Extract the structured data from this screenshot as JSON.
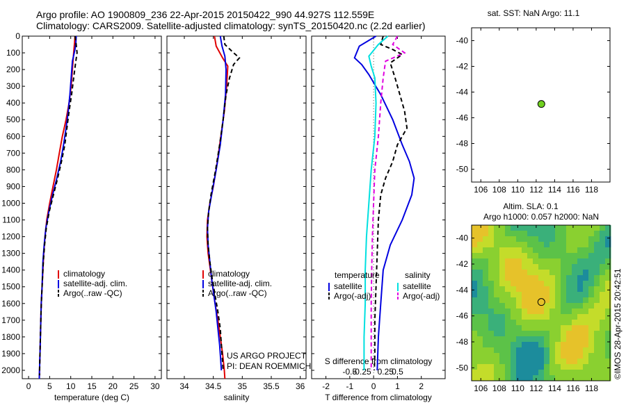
{
  "header": {
    "line1": "Argo profile: AO 1900809_236 22-Apr-2015 20150422_990 44.927S 112.559E",
    "line2": "Climatology: CARS2009. Satellite-adjusted climatology: synTS_20150420.nc (2.2d earlier)"
  },
  "shared": {
    "depth_ticks": [
      "0",
      "100",
      "200",
      "300",
      "400",
      "500",
      "600",
      "700",
      "800",
      "900",
      "1000",
      "1100",
      "1200",
      "1300",
      "1400",
      "1500",
      "1600",
      "1700",
      "1800",
      "1900",
      "2000"
    ],
    "ylim": [
      0,
      2050
    ]
  },
  "credit": {
    "line1": "US ARGO PROJECT",
    "line2": "PI: DEAN ROEMMICH"
  },
  "imos_stamp": "©IMOS 28-Apr-2015 20:42:51",
  "colors": {
    "climatology": "#e00000",
    "satellite": "#0000e0",
    "argo": "#000000",
    "satellite_s": "#00e0e0",
    "argo_s": "#e000e0",
    "marker": "#70d020"
  },
  "chart_data": [
    {
      "type": "line",
      "id": "temperature",
      "xlabel": "temperature (deg C)",
      "xlim": [
        -1.5,
        31.5
      ],
      "xticks": [
        0,
        5,
        10,
        15,
        20,
        25,
        30
      ],
      "xtick_labels": [
        "0",
        "5",
        "10",
        "15",
        "20",
        "25",
        "30"
      ],
      "legend": [
        "climatology",
        "satellite-adj. clim.",
        "Argo(..raw -QC)"
      ],
      "series": [
        {
          "name": "climatology",
          "color": "#e00000",
          "dash": "",
          "points": [
            [
              11.0,
              0
            ],
            [
              10.9,
              40
            ],
            [
              10.7,
              100
            ],
            [
              10.4,
              200
            ],
            [
              10.1,
              300
            ],
            [
              9.6,
              400
            ],
            [
              8.9,
              500
            ],
            [
              8.0,
              600
            ],
            [
              7.3,
              700
            ],
            [
              6.6,
              800
            ],
            [
              5.8,
              900
            ],
            [
              5.0,
              1000
            ],
            [
              4.3,
              1100
            ],
            [
              3.9,
              1200
            ],
            [
              3.6,
              1300
            ],
            [
              3.4,
              1400
            ],
            [
              3.2,
              1500
            ],
            [
              3.0,
              1600
            ],
            [
              2.9,
              1700
            ],
            [
              2.8,
              1800
            ],
            [
              2.7,
              1900
            ],
            [
              2.6,
              2000
            ],
            [
              2.55,
              2050
            ]
          ]
        },
        {
          "name": "satellite-adj. clim.",
          "color": "#0000e0",
          "dash": "",
          "points": [
            [
              11.3,
              0
            ],
            [
              11.2,
              40
            ],
            [
              11.0,
              80
            ],
            [
              10.4,
              150
            ],
            [
              10.1,
              250
            ],
            [
              9.8,
              350
            ],
            [
              9.4,
              450
            ],
            [
              8.9,
              550
            ],
            [
              8.3,
              650
            ],
            [
              7.6,
              750
            ],
            [
              6.7,
              850
            ],
            [
              5.7,
              950
            ],
            [
              4.8,
              1050
            ],
            [
              4.1,
              1150
            ],
            [
              3.7,
              1250
            ],
            [
              3.4,
              1350
            ],
            [
              3.2,
              1500
            ],
            [
              3.0,
              1600
            ],
            [
              2.9,
              1700
            ],
            [
              2.8,
              1800
            ],
            [
              2.7,
              1900
            ],
            [
              2.6,
              2000
            ],
            [
              2.55,
              2050
            ]
          ]
        },
        {
          "name": "Argo(..raw -QC)",
          "color": "#000000",
          "dash": "6,4",
          "points": [
            [
              11.0,
              0
            ],
            [
              11.2,
              30
            ],
            [
              11.5,
              100
            ],
            [
              11.2,
              150
            ],
            [
              10.7,
              250
            ],
            [
              10.2,
              350
            ],
            [
              9.6,
              450
            ],
            [
              9.1,
              550
            ],
            [
              8.6,
              650
            ],
            [
              7.8,
              750
            ],
            [
              6.9,
              850
            ],
            [
              5.9,
              950
            ],
            [
              4.9,
              1050
            ],
            [
              4.2,
              1150
            ],
            [
              3.8,
              1250
            ],
            [
              3.5,
              1350
            ],
            [
              3.3,
              1450
            ],
            [
              3.1,
              1550
            ],
            [
              2.95,
              1650
            ],
            [
              2.85,
              1750
            ],
            [
              2.75,
              1850
            ],
            [
              2.65,
              1950
            ],
            [
              2.6,
              2030
            ]
          ]
        }
      ]
    },
    {
      "type": "line",
      "id": "salinity",
      "xlabel": "salinity",
      "xlim": [
        33.7,
        36.1
      ],
      "xticks": [
        34,
        34.5,
        35,
        35.5,
        36
      ],
      "xtick_labels": [
        "34",
        "34.5",
        "35",
        "35.5",
        "36"
      ],
      "legend": [
        "climatology",
        "satellite-adj. clim.",
        "Argo(..raw -QC)"
      ],
      "series": [
        {
          "name": "climatology",
          "color": "#e00000",
          "dash": "",
          "points": [
            [
              34.52,
              0
            ],
            [
              34.55,
              60
            ],
            [
              34.66,
              130
            ],
            [
              34.75,
              180
            ],
            [
              34.73,
              300
            ],
            [
              34.69,
              450
            ],
            [
              34.63,
              600
            ],
            [
              34.57,
              750
            ],
            [
              34.5,
              900
            ],
            [
              34.44,
              1000
            ],
            [
              34.4,
              1100
            ],
            [
              34.39,
              1200
            ],
            [
              34.41,
              1300
            ],
            [
              34.45,
              1400
            ],
            [
              34.49,
              1500
            ],
            [
              34.53,
              1600
            ],
            [
              34.58,
              1700
            ],
            [
              34.62,
              1800
            ],
            [
              34.66,
              1900
            ],
            [
              34.69,
              2000
            ],
            [
              34.7,
              2050
            ]
          ]
        },
        {
          "name": "satellite-adj. clim.",
          "color": "#0000e0",
          "dash": "",
          "points": [
            [
              34.62,
              0
            ],
            [
              34.65,
              60
            ],
            [
              34.7,
              120
            ],
            [
              34.72,
              200
            ],
            [
              34.71,
              350
            ],
            [
              34.67,
              500
            ],
            [
              34.62,
              650
            ],
            [
              34.55,
              800
            ],
            [
              34.47,
              950
            ],
            [
              34.42,
              1050
            ],
            [
              34.4,
              1150
            ],
            [
              34.41,
              1250
            ],
            [
              34.44,
              1350
            ],
            [
              34.47,
              1450
            ],
            [
              34.51,
              1550
            ],
            [
              34.55,
              1650
            ],
            [
              34.58,
              1750
            ],
            [
              34.61,
              1850
            ],
            [
              34.63,
              1950
            ],
            [
              34.64,
              2000
            ]
          ]
        },
        {
          "name": "Argo(..raw -QC)",
          "color": "#000000",
          "dash": "6,4",
          "points": [
            [
              34.68,
              0
            ],
            [
              34.7,
              50
            ],
            [
              34.85,
              100
            ],
            [
              34.95,
              130
            ],
            [
              34.85,
              170
            ],
            [
              34.78,
              250
            ],
            [
              34.72,
              350
            ],
            [
              34.67,
              500
            ],
            [
              34.61,
              650
            ],
            [
              34.54,
              800
            ],
            [
              34.46,
              950
            ],
            [
              34.42,
              1050
            ],
            [
              34.4,
              1150
            ],
            [
              34.41,
              1250
            ],
            [
              34.44,
              1350
            ],
            [
              34.48,
              1450
            ],
            [
              34.53,
              1550
            ],
            [
              34.58,
              1650
            ],
            [
              34.62,
              1750
            ],
            [
              34.64,
              1850
            ],
            [
              34.66,
              1950
            ],
            [
              34.67,
              2000
            ]
          ]
        }
      ]
    },
    {
      "type": "line",
      "id": "differences",
      "xlabel": "T difference from climatology",
      "xlabel_top": "S difference from climatology",
      "xlim": [
        -2.6,
        3.0
      ],
      "xticks": [
        -2,
        -1,
        0,
        1,
        2
      ],
      "xtick_labels": [
        "-2",
        "-1",
        "0",
        "1",
        "2"
      ],
      "s_ticks_at": [
        -1,
        -0.5,
        0.5,
        1
      ],
      "s_tick_labels": [
        "-0.5",
        "-0.25",
        "0.25",
        "0.5"
      ],
      "legend_headers": [
        "temperature",
        "salinity"
      ],
      "legend": [
        "satellite",
        "Argo(-adj)",
        "satellite",
        "Argo(-adj)"
      ],
      "series": [
        {
          "name": "satellite",
          "color": "#0000e0",
          "dash": "",
          "points": [
            [
              0.1,
              0
            ],
            [
              -0.6,
              60
            ],
            [
              -0.8,
              130
            ],
            [
              -0.5,
              170
            ],
            [
              -0.2,
              230
            ],
            [
              0.3,
              350
            ],
            [
              0.8,
              500
            ],
            [
              1.2,
              650
            ],
            [
              1.5,
              750
            ],
            [
              1.7,
              850
            ],
            [
              1.6,
              950
            ],
            [
              1.2,
              1100
            ],
            [
              0.7,
              1250
            ],
            [
              0.4,
              1400
            ],
            [
              0.3,
              1600
            ],
            [
              0.2,
              1800
            ],
            [
              0.15,
              2000
            ]
          ]
        },
        {
          "name": "Argo(-adj)",
          "color": "#000000",
          "dash": "6,4",
          "points": [
            [
              0.4,
              0
            ],
            [
              0.3,
              50
            ],
            [
              0.8,
              80
            ],
            [
              1.2,
              110
            ],
            [
              0.7,
              160
            ],
            [
              0.9,
              250
            ],
            [
              1.1,
              350
            ],
            [
              1.3,
              450
            ],
            [
              1.4,
              550
            ],
            [
              1.0,
              650
            ],
            [
              0.8,
              750
            ],
            [
              0.5,
              850
            ],
            [
              0.3,
              950
            ],
            [
              0.2,
              1100
            ],
            [
              0.15,
              1300
            ],
            [
              0.1,
              1500
            ],
            [
              0.05,
              1700
            ],
            [
              0.05,
              1900
            ],
            [
              0.03,
              2000
            ]
          ]
        },
        {
          "name": "satellite",
          "color": "#00e0e0",
          "dash": "",
          "points": [
            [
              0.6,
              0
            ],
            [
              0.2,
              50
            ],
            [
              -0.2,
              120
            ],
            [
              -0.1,
              180
            ],
            [
              0.05,
              250
            ],
            [
              0.1,
              400
            ],
            [
              0.05,
              600
            ],
            [
              -0.1,
              800
            ],
            [
              -0.2,
              1000
            ],
            [
              -0.3,
              1200
            ],
            [
              -0.35,
              1400
            ],
            [
              -0.35,
              1600
            ],
            [
              -0.4,
              1800
            ],
            [
              -0.4,
              2000
            ]
          ]
        },
        {
          "name": "Argo(-adj)",
          "color": "#e000e0",
          "dash": "6,4",
          "points": [
            [
              1.0,
              0
            ],
            [
              0.8,
              50
            ],
            [
              1.3,
              100
            ],
            [
              0.5,
              150
            ],
            [
              0.4,
              250
            ],
            [
              0.3,
              400
            ],
            [
              0.2,
              600
            ],
            [
              0.05,
              800
            ],
            [
              0.0,
              1000
            ],
            [
              -0.05,
              1200
            ],
            [
              -0.08,
              1400
            ],
            [
              -0.1,
              1600
            ],
            [
              -0.1,
              1800
            ],
            [
              -0.1,
              2000
            ]
          ]
        }
      ]
    },
    {
      "type": "scatter",
      "id": "sst_map",
      "title": "sat. SST: NaN Argo: 11.1",
      "xlim": [
        105,
        120
      ],
      "ylim": [
        -51,
        -39
      ],
      "xticks": [
        106,
        108,
        110,
        112,
        114,
        116,
        118
      ],
      "yticks": [
        -40,
        -42,
        -44,
        -46,
        -48,
        -50
      ],
      "points": [
        [
          112.559,
          -44.927
        ]
      ]
    },
    {
      "type": "heatmap",
      "id": "sla_map",
      "title_line1": "Altim. SLA: 0.1",
      "title_line2": "Argo h1000: 0.057 h2000: NaN",
      "xlim": [
        105,
        120
      ],
      "ylim": [
        -51,
        -39
      ],
      "xticks": [
        106,
        108,
        110,
        112,
        114,
        116,
        118
      ],
      "yticks": [
        -40,
        -42,
        -44,
        -46,
        -48,
        -50
      ],
      "points": [
        [
          112.559,
          -44.927
        ]
      ]
    }
  ]
}
